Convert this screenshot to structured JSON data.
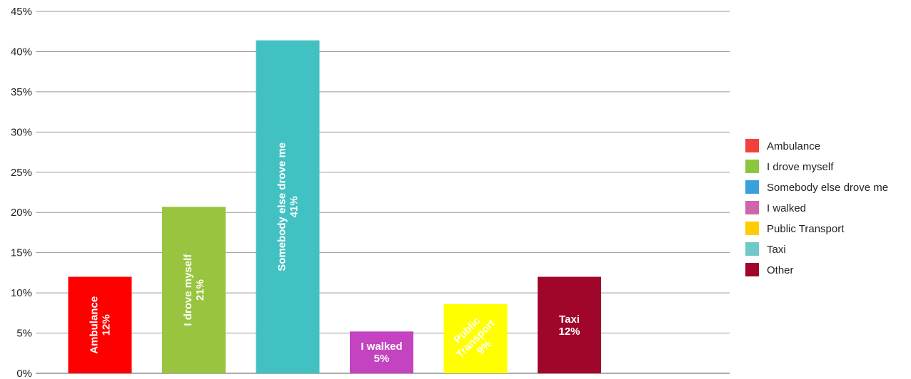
{
  "chart_data": {
    "type": "bar",
    "categories": [
      "Ambulance",
      "I drove myself",
      "Somebody else drove me",
      "I walked",
      "Public Transport",
      "Taxi"
    ],
    "values": [
      12,
      20.7,
      41.4,
      5.2,
      8.6,
      12
    ],
    "data_labels": [
      [
        "Ambulance",
        "12%"
      ],
      [
        "I drove myself",
        "21%"
      ],
      [
        "Somebody else drove me",
        "41%"
      ],
      [
        "I walked",
        "5%"
      ],
      [
        "Public",
        "Transport",
        "9%"
      ],
      [
        "Taxi",
        "12%"
      ]
    ],
    "label_orientation": [
      "vertical",
      "vertical",
      "vertical",
      "horizontal",
      "diagonal",
      "horizontal"
    ],
    "bar_colors": [
      "#ff0000",
      "#99c43f",
      "#42c1c3",
      "#c343c0",
      "#ffff00",
      "#a0062a"
    ],
    "label_colors": [
      "#ffffff",
      "#ffffff",
      "#ffffff",
      "#ffffff",
      "#000000",
      "#ffffff"
    ],
    "title": "",
    "xlabel": "",
    "ylabel": "",
    "ylim": [
      0,
      45
    ],
    "yticks": [
      0,
      5,
      10,
      15,
      20,
      25,
      30,
      35,
      40,
      45
    ],
    "ytick_labels": [
      "0%",
      "5%",
      "10%",
      "15%",
      "20%",
      "25%",
      "30%",
      "35%",
      "40%",
      "45%"
    ],
    "grid": true,
    "legend_position": "right",
    "legend": [
      {
        "label": "Ambulance",
        "color": "#f0413a"
      },
      {
        "label": "I drove myself",
        "color": "#8cc63f"
      },
      {
        "label": "Somebody else drove me",
        "color": "#3a9fdb"
      },
      {
        "label": "I walked",
        "color": "#d065a8"
      },
      {
        "label": "Public Transport",
        "color": "#ffcc00"
      },
      {
        "label": "Taxi",
        "color": "#6fcac7"
      },
      {
        "label": "Other",
        "color": "#a0062a"
      }
    ]
  }
}
